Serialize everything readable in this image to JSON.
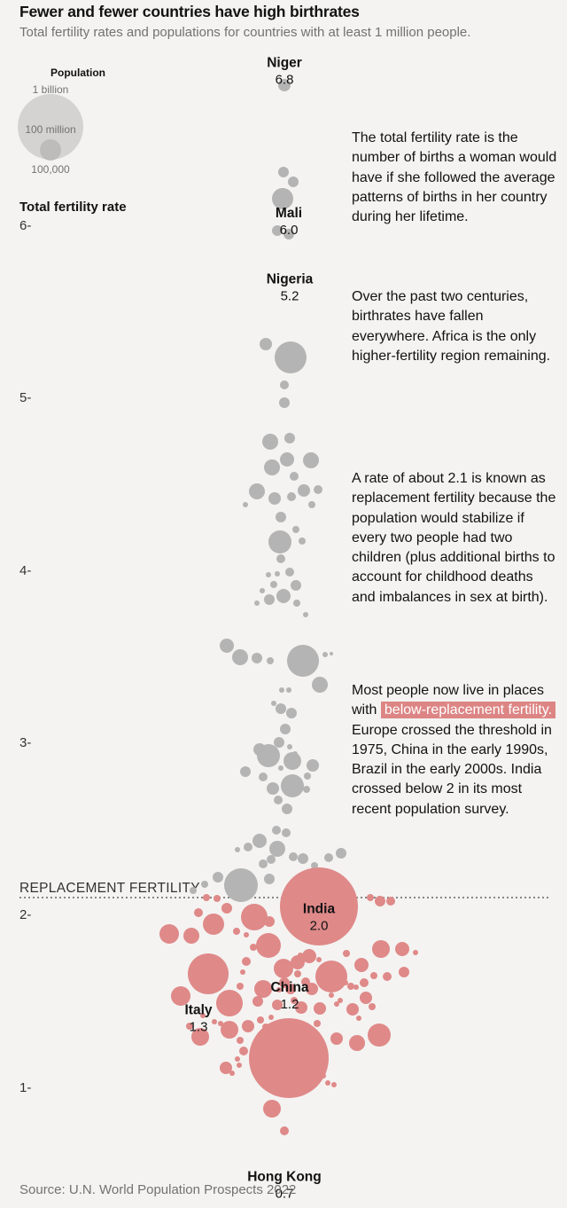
{
  "header": {
    "title": "Fewer and fewer countries have high birthrates",
    "subtitle": "Total fertility rates and populations for countries with at least 1 million people."
  },
  "legend": {
    "title": "Population",
    "sizes": [
      "1 billion",
      "100 million",
      "100,000"
    ]
  },
  "axis": {
    "ylabel": "Total fertility rate",
    "ticks": [
      "6",
      "5",
      "4",
      "3",
      "2",
      "1"
    ],
    "replacement_label": "REPLACEMENT FERTILITY"
  },
  "notes": {
    "n1": "The total fertility rate is the number of births a woman would have if she followed the average patterns of births in her country during her lifetime.",
    "n2": "Over the past two centuries, birthrates have fallen everywhere. Africa is the only higher-fertility region remaining.",
    "n3": "A rate of about 2.1 is known as replacement fertility because the population would stabilize if every two people had two children (plus additional births to account for childhood deaths and imbalances in sex at birth).",
    "n4_before": "Most people now live in places with",
    "n4_highlight": "below-replacement fertility.",
    "n4_after": "Europe crossed the threshold in 1975, China in the early 1990s, Brazil in the early 2000s. India crossed below 2 in its most recent population survey."
  },
  "source": "Source: U.N. World Population Prospects 2022",
  "colors": {
    "above": "#b4b4b4",
    "below": "#df8989",
    "background": "#f4f3f1",
    "highlight": "#dd8585"
  },
  "chart_data": {
    "type": "scatter",
    "title": "Fewer and fewer countries have high birthrates",
    "ylabel": "Total fertility rate",
    "ylim": [
      0.7,
      6.9
    ],
    "yticks": [
      1,
      2,
      3,
      4,
      5,
      6
    ],
    "replacement_fertility": 2.1,
    "labeled_countries": [
      {
        "name": "Niger",
        "tfr": 6.8,
        "label": "6.8"
      },
      {
        "name": "Mali",
        "tfr": 6.0,
        "label": "6.0"
      },
      {
        "name": "Nigeria",
        "tfr": 5.2,
        "label": "5.2"
      },
      {
        "name": "India",
        "tfr": 2.0,
        "label": "2.0"
      },
      {
        "name": "Italy",
        "tfr": 1.3,
        "label": "1.3"
      },
      {
        "name": "China",
        "tfr": 1.2,
        "label": "1.2"
      },
      {
        "name": "Hong Kong",
        "tfr": 0.7,
        "label": "0.7"
      }
    ]
  }
}
